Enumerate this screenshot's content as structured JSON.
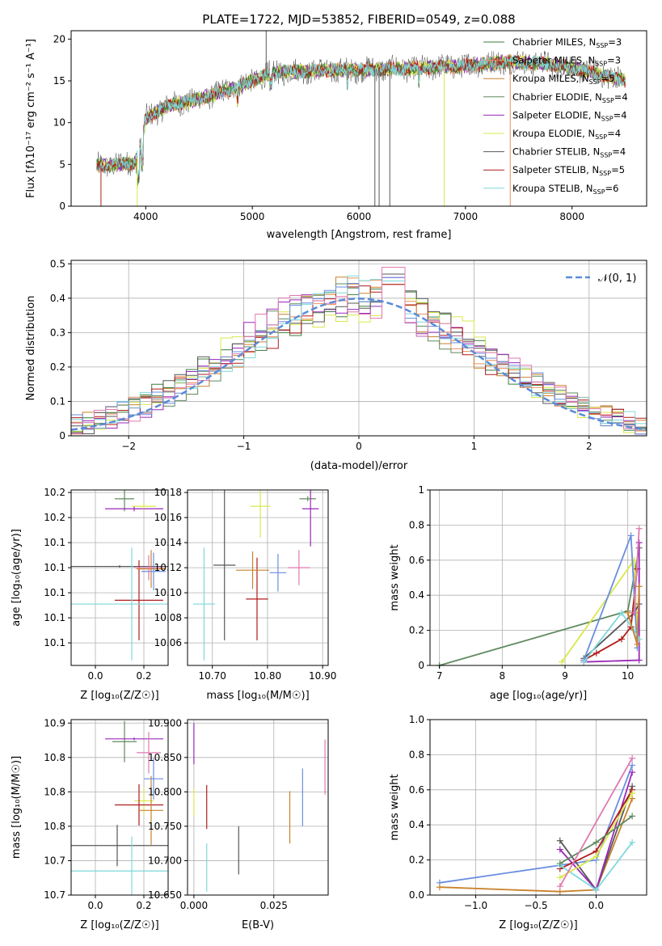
{
  "colors": {
    "Chabrier MILES": "#3c7d3c",
    "Salpeter MILES": "#e8905c",
    "Kroupa MILES": "#c9822b",
    "Chabrier ELODIE": "#5f8a5f",
    "Salpeter ELODIE": "#9a28b8",
    "Kroupa ELODIE": "#d9e84c",
    "Chabrier STELIB": "#585858",
    "Salpeter STELIB": "#b01c1c",
    "Kroupa STELIB": "#7fd8da",
    "extra_blue": "#6a8ee0",
    "extra_pink": "#e07ab0",
    "normal_curve": "#5b8bd9",
    "grid": "#b0b0b0"
  },
  "chart_data": [
    {
      "id": "spectrum",
      "type": "line",
      "title": "PLATE=1722, MJD=53852, FIBERID=0549, z=0.088",
      "xlabel": "wavelength [Angstrom, rest frame]",
      "ylabel": "Flux [fλ10⁻¹⁷ erg cm⁻² s⁻¹ A⁻¹]",
      "xlim": [
        3300,
        8700
      ],
      "ylim": [
        0,
        21
      ],
      "xticks": [
        4000,
        5000,
        6000,
        7000,
        8000
      ],
      "yticks": [
        0,
        5,
        10,
        15,
        20
      ],
      "grid": false,
      "legend_position": "upper-right",
      "legend": [
        {
          "label": "Chabrier MILES, N",
          "sub": "SSP",
          "suffix": "=3",
          "color_key": "Chabrier MILES"
        },
        {
          "label": "Salpeter MILES, N",
          "sub": "SSP",
          "suffix": "=3",
          "color_key": "Salpeter MILES"
        },
        {
          "label": "Kroupa MILES, N",
          "sub": "SSP",
          "suffix": "=5",
          "color_key": "Kroupa MILES"
        },
        {
          "label": "Chabrier ELODIE, N",
          "sub": "SSP",
          "suffix": "=4",
          "color_key": "Chabrier ELODIE"
        },
        {
          "label": "Salpeter ELODIE, N",
          "sub": "SSP",
          "suffix": "=4",
          "color_key": "Salpeter ELODIE"
        },
        {
          "label": "Kroupa ELODIE, N",
          "sub": "SSP",
          "suffix": "=4",
          "color_key": "Kroupa ELODIE"
        },
        {
          "label": "Chabrier STELIB, N",
          "sub": "SSP",
          "suffix": "=4",
          "color_key": "Chabrier STELIB"
        },
        {
          "label": "Salpeter STELIB, N",
          "sub": "SSP",
          "suffix": "=5",
          "color_key": "Salpeter STELIB"
        },
        {
          "label": "Kroupa STELIB, N",
          "sub": "SSP",
          "suffix": "=6",
          "color_key": "Kroupa STELIB"
        }
      ],
      "continuum_knots": [
        [
          3550,
          4.8
        ],
        [
          3900,
          5.2
        ],
        [
          3950,
          7.0
        ],
        [
          4000,
          10.5
        ],
        [
          4200,
          12.0
        ],
        [
          4500,
          12.8
        ],
        [
          4800,
          14.0
        ],
        [
          5200,
          16.0
        ],
        [
          5600,
          16.2
        ],
        [
          6000,
          16.3
        ],
        [
          6500,
          16.5
        ],
        [
          7000,
          16.8
        ],
        [
          7400,
          17.3
        ],
        [
          7800,
          17.0
        ],
        [
          8200,
          16.0
        ],
        [
          8500,
          15.0
        ]
      ],
      "spikes": [
        {
          "x": 3580,
          "y": 0,
          "color_key": "Salpeter STELIB"
        },
        {
          "x": 3920,
          "y": 0,
          "color_key": "Kroupa ELODIE"
        },
        {
          "x": 5130,
          "y": 21,
          "color_key": "Chabrier STELIB"
        },
        {
          "x": 6150,
          "y": 0,
          "color_key": "Chabrier STELIB"
        },
        {
          "x": 6190,
          "y": 0,
          "color_key": "Chabrier STELIB"
        },
        {
          "x": 6290,
          "y": 0,
          "color_key": "Chabrier STELIB"
        },
        {
          "x": 6800,
          "y": 0,
          "color_key": "Kroupa ELODIE"
        },
        {
          "x": 7420,
          "y": 0,
          "color_key": "Salpeter MILES"
        }
      ]
    },
    {
      "id": "residuals",
      "type": "histogram",
      "xlabel": "(data-model)/error",
      "ylabel": "Normed distribution",
      "xlim": [
        -2.5,
        2.5
      ],
      "ylim": [
        0,
        0.51
      ],
      "xticks": [
        -2,
        -1,
        0,
        1,
        2
      ],
      "yticks": [
        0.0,
        0.1,
        0.2,
        0.3,
        0.4,
        0.5
      ],
      "grid": true,
      "legend_position": "upper-right",
      "legend": {
        "label": "𝒩(0, 1)",
        "color_key": "normal_curve",
        "style": "dashed"
      },
      "bin_width": 0.1,
      "series_colors": [
        "Chabrier MILES",
        "Salpeter MILES",
        "Kroupa MILES",
        "Chabrier ELODIE",
        "Salpeter ELODIE",
        "Kroupa ELODIE",
        "Chabrier STELIB",
        "Salpeter STELIB",
        "Kroupa STELIB",
        "extra_blue",
        "extra_pink"
      ],
      "peak_values": [
        0.49,
        0.47,
        0.44,
        0.45,
        0.46
      ]
    },
    {
      "id": "age-vs-Z",
      "type": "errorbar",
      "xlabel": "Z [log₁₀(Z/Z☉)]",
      "ylabel": "age  [log₁₀(age/yr)]",
      "xlim": [
        -0.1,
        0.3
      ],
      "ylim": [
        10.042,
        10.182
      ],
      "xticks": [
        0.0,
        0.2
      ],
      "yticks": [
        10.06,
        10.08,
        10.1,
        10.12,
        10.14,
        10.16,
        10.18
      ],
      "grid": true,
      "points": [
        {
          "x": 0.12,
          "xerr": 0.04,
          "y": 10.175,
          "yerr": 0.01,
          "color_key": "Chabrier ELODIE"
        },
        {
          "x": 0.16,
          "xerr": 0.12,
          "y": 10.167,
          "yerr": 0.002,
          "color_key": "Salpeter ELODIE"
        },
        {
          "x": 0.2,
          "xerr": 0.05,
          "y": 10.169,
          "yerr": 0.002,
          "color_key": "Kroupa ELODIE"
        },
        {
          "x": 0.1,
          "xerr": 0.24,
          "y": 10.121,
          "yerr": 0.001,
          "color_key": "Chabrier STELIB"
        },
        {
          "x": 0.18,
          "xerr": 0.1,
          "y": 10.094,
          "yerr": 0.032,
          "color_key": "Salpeter STELIB"
        },
        {
          "x": 0.15,
          "xerr": 0.28,
          "y": 10.091,
          "yerr": 0.045,
          "color_key": "Kroupa STELIB"
        },
        {
          "x": 0.23,
          "xerr": 0.06,
          "y": 10.119,
          "yerr": 0.015,
          "color_key": "Kroupa MILES"
        },
        {
          "x": 0.24,
          "xerr": 0.05,
          "y": 10.117,
          "yerr": 0.015,
          "color_key": "extra_blue"
        },
        {
          "x": 0.22,
          "xerr": 0.06,
          "y": 10.12,
          "yerr": 0.01,
          "color_key": "extra_pink"
        }
      ]
    },
    {
      "id": "age-vs-mass",
      "type": "errorbar",
      "xlabel": "mass [log₁₀(M/M☉)]",
      "ylabel": "",
      "xlim": [
        10.655,
        10.91
      ],
      "ylim": [
        10.042,
        10.182
      ],
      "xticks": [
        10.7,
        10.8,
        10.9
      ],
      "yticks": [
        10.06,
        10.08,
        10.1,
        10.12,
        10.14,
        10.16,
        10.18
      ],
      "grid": true,
      "points": [
        {
          "x": 10.873,
          "xerr": 0.015,
          "y": 10.175,
          "yerr": 0.002,
          "color_key": "Chabrier ELODIE"
        },
        {
          "x": 10.878,
          "xerr": 0.015,
          "y": 10.167,
          "yerr": 0.03,
          "color_key": "Salpeter ELODIE"
        },
        {
          "x": 10.787,
          "xerr": 0.018,
          "y": 10.169,
          "yerr": 0.025,
          "color_key": "Kroupa ELODIE"
        },
        {
          "x": 10.722,
          "xerr": 0.02,
          "y": 10.122,
          "yerr": 0.06,
          "color_key": "Chabrier STELIB"
        },
        {
          "x": 10.781,
          "xerr": 0.02,
          "y": 10.095,
          "yerr": 0.033,
          "color_key": "Salpeter STELIB"
        },
        {
          "x": 10.685,
          "xerr": 0.02,
          "y": 10.091,
          "yerr": 0.045,
          "color_key": "Kroupa STELIB"
        },
        {
          "x": 10.773,
          "xerr": 0.03,
          "y": 10.118,
          "yerr": 0.015,
          "color_key": "Kroupa MILES"
        },
        {
          "x": 10.819,
          "xerr": 0.015,
          "y": 10.116,
          "yerr": 0.015,
          "color_key": "extra_blue"
        },
        {
          "x": 10.857,
          "xerr": 0.02,
          "y": 10.12,
          "yerr": 0.014,
          "color_key": "extra_pink"
        }
      ]
    },
    {
      "id": "weights-vs-age",
      "type": "line",
      "xlabel": "age  [log₁₀(age/yr)]",
      "ylabel": "mass weight",
      "xlim": [
        6.85,
        10.3
      ],
      "ylim": [
        0,
        1.0
      ],
      "xticks": [
        7,
        8,
        9,
        10
      ],
      "yticks": [
        0.0,
        0.2,
        0.4,
        0.6,
        0.8,
        1.0
      ],
      "grid": true,
      "series": [
        {
          "color_key": "Chabrier ELODIE",
          "points": [
            [
              7.0,
              0.0
            ],
            [
              10.0,
              0.31
            ],
            [
              10.18,
              0.67
            ]
          ]
        },
        {
          "color_key": "Kroupa ELODIE",
          "points": [
            [
              8.95,
              0.02
            ],
            [
              10.1,
              0.6
            ],
            [
              10.15,
              0.2
            ]
          ]
        },
        {
          "color_key": "Chabrier STELIB",
          "points": [
            [
              9.3,
              0.04
            ],
            [
              10.1,
              0.3
            ],
            [
              10.18,
              0.35
            ]
          ]
        },
        {
          "color_key": "Salpeter STELIB",
          "points": [
            [
              9.3,
              0.03
            ],
            [
              9.5,
              0.07
            ],
            [
              9.9,
              0.15
            ],
            [
              10.05,
              0.22
            ],
            [
              10.15,
              0.55
            ]
          ]
        },
        {
          "color_key": "Salpeter ELODIE",
          "points": [
            [
              9.3,
              0.02
            ],
            [
              10.18,
              0.03
            ],
            [
              10.18,
              0.7
            ]
          ]
        },
        {
          "color_key": "extra_blue",
          "points": [
            [
              9.3,
              0.03
            ],
            [
              10.05,
              0.74
            ],
            [
              10.15,
              0.1
            ]
          ]
        },
        {
          "color_key": "Kroupa STELIB",
          "points": [
            [
              9.3,
              0.02
            ],
            [
              9.9,
              0.3
            ],
            [
              10.1,
              0.2
            ],
            [
              10.18,
              0.15
            ]
          ]
        },
        {
          "color_key": "extra_pink",
          "points": [
            [
              10.1,
              0.3
            ],
            [
              10.18,
              0.78
            ]
          ]
        },
        {
          "color_key": "Kroupa MILES",
          "points": [
            [
              10.0,
              0.3
            ],
            [
              10.15,
              0.12
            ],
            [
              10.18,
              0.45
            ]
          ]
        }
      ]
    },
    {
      "id": "mass-vs-Z",
      "type": "errorbar",
      "xlabel": "Z [log₁₀(Z/Z☉)]",
      "ylabel": "mass [log₁₀(M/M☉)]",
      "xlim": [
        -0.1,
        0.3
      ],
      "ylim": [
        10.65,
        10.905
      ],
      "xticks": [
        0.0,
        0.2
      ],
      "yticks": [
        10.65,
        10.7,
        10.75,
        10.8,
        10.85,
        10.9
      ],
      "grid": true,
      "points": [
        {
          "x": 0.12,
          "xerr": 0.05,
          "y": 10.873,
          "yerr": 0.03,
          "color_key": "Chabrier ELODIE"
        },
        {
          "x": 0.16,
          "xerr": 0.12,
          "y": 10.877,
          "yerr": 0.002,
          "color_key": "Salpeter ELODIE"
        },
        {
          "x": 0.2,
          "xerr": 0.04,
          "y": 10.787,
          "yerr": 0.02,
          "color_key": "Kroupa ELODIE"
        },
        {
          "x": 0.09,
          "xerr": 0.24,
          "y": 10.722,
          "yerr": 0.03,
          "color_key": "Chabrier STELIB"
        },
        {
          "x": 0.18,
          "xerr": 0.1,
          "y": 10.781,
          "yerr": 0.03,
          "color_key": "Salpeter STELIB"
        },
        {
          "x": 0.15,
          "xerr": 0.3,
          "y": 10.685,
          "yerr": 0.05,
          "color_key": "Kroupa STELIB"
        },
        {
          "x": 0.23,
          "xerr": 0.05,
          "y": 10.773,
          "yerr": 0.05,
          "color_key": "Kroupa MILES"
        },
        {
          "x": 0.24,
          "xerr": 0.04,
          "y": 10.819,
          "yerr": 0.03,
          "color_key": "extra_blue"
        },
        {
          "x": 0.22,
          "xerr": 0.05,
          "y": 10.857,
          "yerr": 0.03,
          "color_key": "extra_pink"
        }
      ]
    },
    {
      "id": "mass-vs-ebv",
      "type": "errorbar",
      "xlabel": "E(B-V)",
      "ylabel": "",
      "xlim": [
        -0.002,
        0.042
      ],
      "ylim": [
        10.65,
        10.905
      ],
      "xticks": [
        0.0,
        0.025
      ],
      "yticks": [
        10.65,
        10.7,
        10.75,
        10.8,
        10.85,
        10.9
      ],
      "grid": true,
      "points": [
        {
          "x": 0.0,
          "y": 10.87,
          "yerr": 0.03,
          "color_key": "Salpeter ELODIE"
        },
        {
          "x": 0.0,
          "y": 10.785,
          "yerr": 0.02,
          "color_key": "Kroupa ELODIE"
        },
        {
          "x": 0.004,
          "y": 10.778,
          "yerr": 0.032,
          "color_key": "Salpeter STELIB"
        },
        {
          "x": 0.004,
          "y": 10.69,
          "yerr": 0.035,
          "color_key": "Kroupa STELIB"
        },
        {
          "x": 0.014,
          "y": 10.715,
          "yerr": 0.035,
          "color_key": "Chabrier STELIB"
        },
        {
          "x": 0.03,
          "y": 10.763,
          "yerr": 0.038,
          "color_key": "Kroupa MILES"
        },
        {
          "x": 0.034,
          "y": 10.792,
          "yerr": 0.042,
          "color_key": "extra_blue"
        },
        {
          "x": 0.041,
          "y": 10.836,
          "yerr": 0.04,
          "color_key": "extra_pink"
        }
      ]
    },
    {
      "id": "weights-vs-Z",
      "type": "line",
      "xlabel": "Z [log₁₀(Z/Z☉)]",
      "ylabel": "mass weight",
      "xlim": [
        -1.38,
        0.42
      ],
      "ylim": [
        0,
        1.0
      ],
      "xticks": [
        -1.0,
        -0.5,
        0.0
      ],
      "yticks": [
        0.0,
        0.2,
        0.4,
        0.6,
        0.8,
        1.0
      ],
      "grid": true,
      "series": [
        {
          "color_key": "extra_blue",
          "points": [
            [
              -1.3,
              0.07
            ],
            [
              0.0,
              0.2
            ],
            [
              0.3,
              0.74
            ]
          ]
        },
        {
          "color_key": "Kroupa MILES",
          "points": [
            [
              -1.3,
              0.045
            ],
            [
              -0.3,
              0.02
            ],
            [
              0.0,
              0.03
            ],
            [
              0.3,
              0.55
            ]
          ]
        },
        {
          "color_key": "Chabrier STELIB",
          "points": [
            [
              -0.3,
              0.31
            ],
            [
              0.0,
              0.03
            ],
            [
              0.3,
              0.62
            ]
          ]
        },
        {
          "color_key": "Salpeter ELODIE",
          "points": [
            [
              -0.3,
              0.26
            ],
            [
              0.0,
              0.03
            ],
            [
              0.3,
              0.7
            ]
          ]
        },
        {
          "color_key": "Salpeter STELIB",
          "points": [
            [
              -0.3,
              0.15
            ],
            [
              0.0,
              0.25
            ],
            [
              0.3,
              0.6
            ]
          ]
        },
        {
          "color_key": "Kroupa STELIB",
          "points": [
            [
              -0.3,
              0.17
            ],
            [
              0.0,
              0.03
            ],
            [
              0.3,
              0.3
            ]
          ]
        },
        {
          "color_key": "Kroupa ELODIE",
          "points": [
            [
              -0.3,
              0.1
            ],
            [
              0.0,
              0.22
            ],
            [
              0.3,
              0.58
            ]
          ]
        },
        {
          "color_key": "Chabrier ELODIE",
          "points": [
            [
              -0.3,
              0.18
            ],
            [
              0.0,
              0.3
            ],
            [
              0.3,
              0.45
            ]
          ]
        },
        {
          "color_key": "extra_pink",
          "points": [
            [
              -0.3,
              0.05
            ],
            [
              0.3,
              0.78
            ]
          ]
        }
      ]
    }
  ]
}
